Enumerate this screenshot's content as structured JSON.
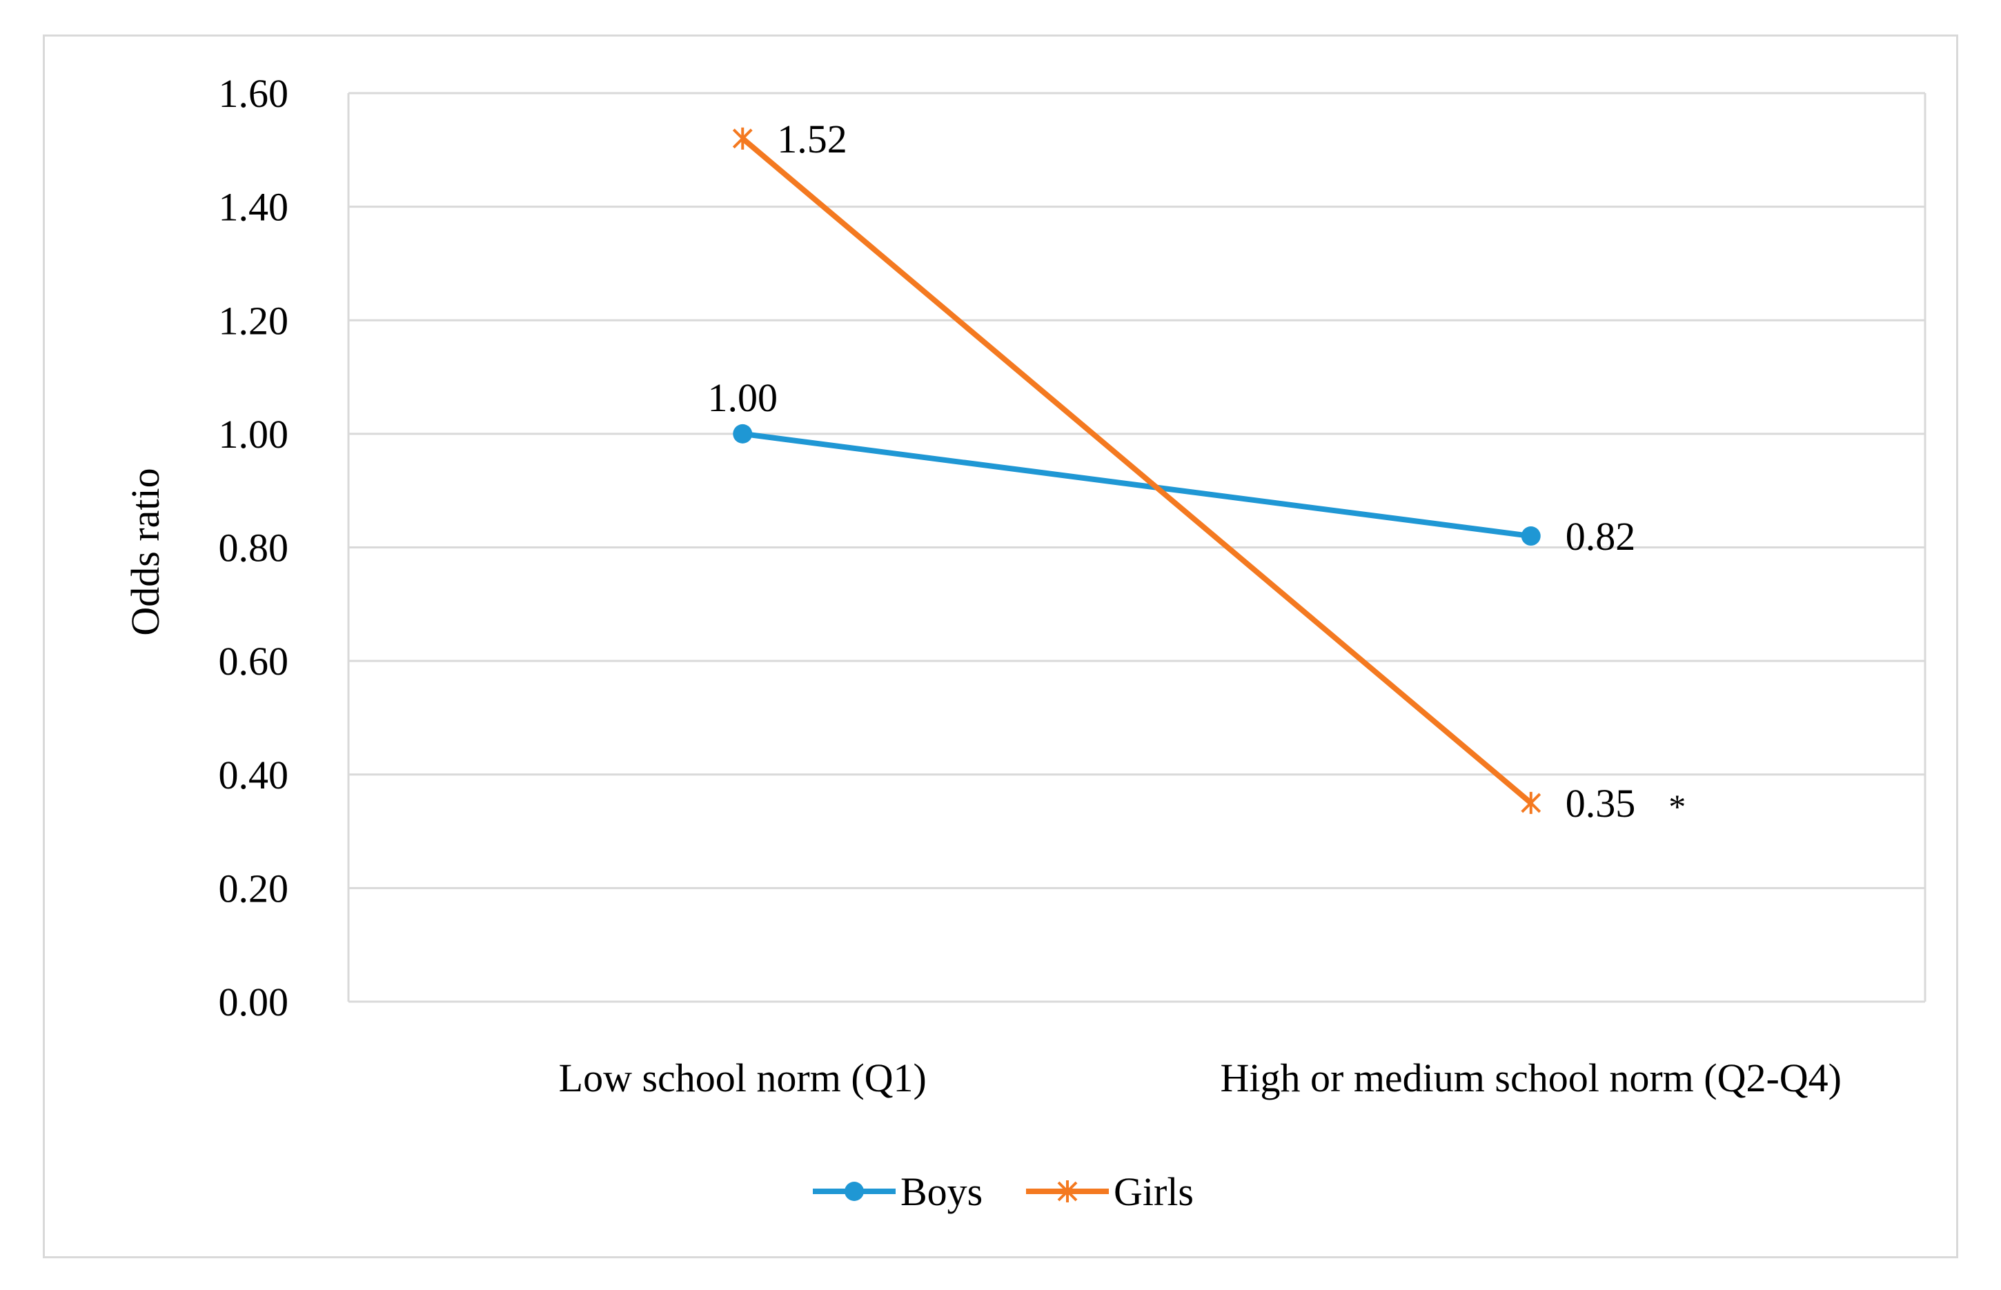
{
  "chart_data": {
    "type": "line",
    "title": "",
    "xlabel": "",
    "ylabel": "Odds ratio",
    "ylim": [
      0,
      1.6
    ],
    "ytick_step": 0.2,
    "ytick_labels": [
      "0.00",
      "0.20",
      "0.40",
      "0.60",
      "0.80",
      "1.00",
      "1.20",
      "1.40",
      "1.60"
    ],
    "grid": true,
    "legend_position": "bottom",
    "categories": [
      "Low school norm (Q1)",
      "High or medium school norm (Q2-Q4)"
    ],
    "series": [
      {
        "name": "Boys",
        "values": [
          1.0,
          0.82
        ],
        "labels": [
          "1.00",
          "0.82"
        ],
        "color": "#1f97d4",
        "marker": "circle"
      },
      {
        "name": "Girls",
        "values": [
          1.52,
          0.35
        ],
        "labels": [
          "1.52",
          "0.35"
        ],
        "color": "#f47920",
        "marker": "x"
      }
    ],
    "annotations": [
      {
        "series": "Girls",
        "point": 1,
        "text": "*"
      }
    ]
  }
}
